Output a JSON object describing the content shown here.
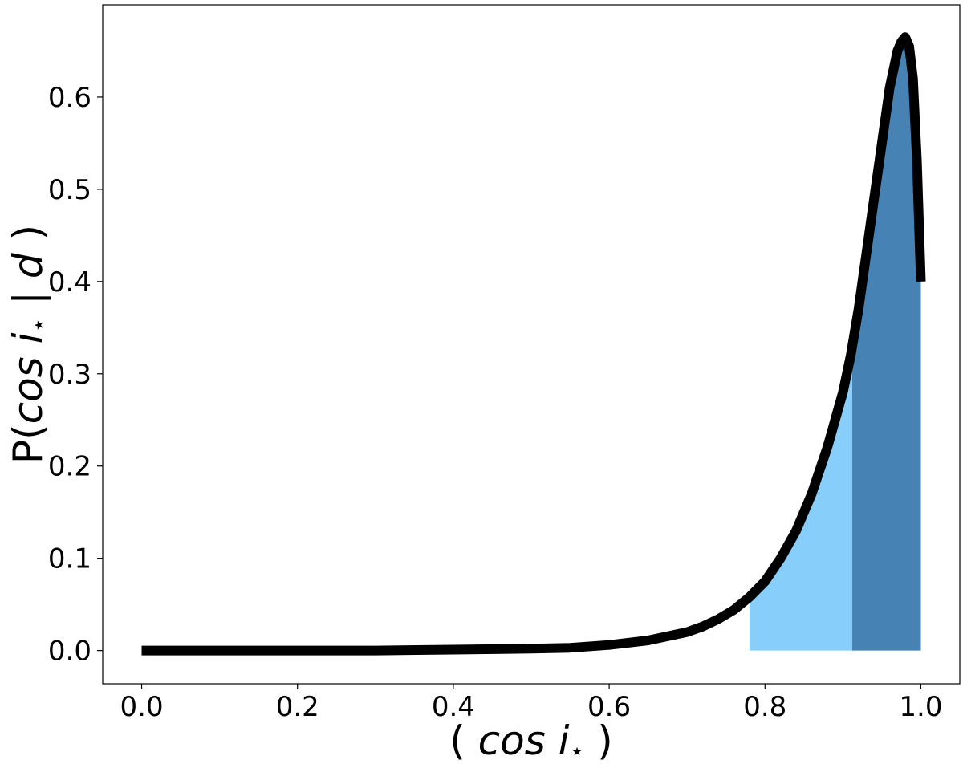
{
  "chart_data": {
    "type": "area",
    "xlabel_parts": [
      "( ",
      "cos i",
      "⋆",
      " )"
    ],
    "ylabel_parts": [
      "P(",
      "cos i",
      "⋆",
      " | ",
      "d",
      " )"
    ],
    "xlim": [
      -0.05,
      1.05
    ],
    "ylim": [
      -0.036,
      0.7
    ],
    "x_ticks": [
      0.0,
      0.2,
      0.4,
      0.6,
      0.8,
      1.0
    ],
    "x_tick_labels": [
      "0.0",
      "0.2",
      "0.4",
      "0.6",
      "0.8",
      "1.0"
    ],
    "y_ticks": [
      0.0,
      0.1,
      0.2,
      0.3,
      0.4,
      0.5,
      0.6
    ],
    "y_tick_labels": [
      "0.0",
      "0.1",
      "0.2",
      "0.3",
      "0.4",
      "0.5",
      "0.6"
    ],
    "grid": false,
    "series": [
      {
        "color": "#000000",
        "x": [
          0.0,
          0.1,
          0.2,
          0.3,
          0.4,
          0.5,
          0.55,
          0.6,
          0.65,
          0.7,
          0.72,
          0.74,
          0.76,
          0.78,
          0.8,
          0.82,
          0.84,
          0.86,
          0.88,
          0.9,
          0.91,
          0.92,
          0.93,
          0.94,
          0.95,
          0.96,
          0.97,
          0.975,
          0.98,
          0.985,
          0.99,
          0.995,
          1.0
        ],
        "y": [
          0.0,
          0.0,
          0.0,
          0.0,
          0.001,
          0.002,
          0.003,
          0.006,
          0.011,
          0.02,
          0.026,
          0.034,
          0.044,
          0.058,
          0.075,
          0.1,
          0.13,
          0.17,
          0.22,
          0.28,
          0.32,
          0.37,
          0.43,
          0.49,
          0.55,
          0.61,
          0.65,
          0.66,
          0.665,
          0.655,
          0.62,
          0.53,
          0.4
        ]
      }
    ],
    "shaded_regions": [
      {
        "x_start": 0.78,
        "x_end": 0.912,
        "color": "#87cefa"
      },
      {
        "x_start": 0.912,
        "x_end": 1.0,
        "color": "#4682b4"
      }
    ]
  }
}
